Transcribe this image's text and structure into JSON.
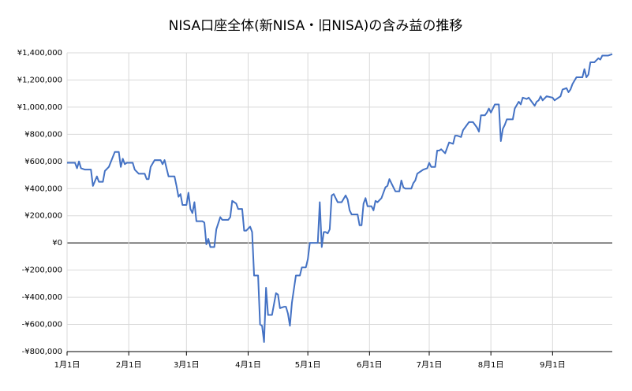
{
  "chart_data": {
    "type": "line",
    "title": "NISA口座全体(新NISA・旧NISA)の含み益の推移",
    "x": [
      0,
      4,
      5,
      6,
      7,
      9,
      12,
      13,
      15,
      16,
      18,
      19,
      21,
      24,
      26,
      27,
      28,
      29,
      30,
      33,
      34,
      36,
      39,
      40,
      41,
      42,
      44,
      47,
      48,
      49,
      51,
      54,
      55,
      56,
      57,
      58,
      60,
      61,
      62,
      63,
      64,
      65,
      68,
      69,
      70,
      71,
      72,
      74,
      75,
      77,
      78,
      81,
      82,
      83,
      85,
      86,
      88,
      89,
      90,
      92,
      93,
      94,
      96,
      97,
      98,
      99,
      100,
      101,
      103,
      105,
      106,
      107,
      109,
      110,
      111,
      112,
      113,
      115,
      117,
      118,
      120,
      121,
      122,
      126,
      127,
      128,
      129,
      130,
      131,
      132,
      133,
      134,
      136,
      138,
      140,
      141,
      142,
      143,
      146,
      147,
      148,
      149,
      150,
      151,
      153,
      154,
      155,
      156,
      158,
      160,
      161,
      162,
      163,
      165,
      167,
      168,
      169,
      170,
      173,
      174,
      175,
      176,
      178,
      179,
      181,
      182,
      183,
      185,
      186,
      187,
      188,
      190,
      191,
      192,
      194,
      195,
      196,
      198,
      199,
      200,
      202,
      204,
      206,
      207,
      208,
      210,
      211,
      212,
      213,
      215,
      217,
      218,
      219,
      220,
      221,
      224,
      225,
      227,
      228,
      229,
      231,
      232,
      234,
      235,
      236,
      237,
      238,
      239,
      241,
      244,
      245,
      246,
      248,
      249,
      251,
      252,
      253,
      254,
      256,
      259,
      260,
      261,
      262,
      263,
      265,
      267,
      268,
      269,
      272,
      274
    ],
    "series": [
      {
        "color": "#4472c4",
        "values": [
          590000,
          590000,
          550000,
          600000,
          550000,
          540000,
          540000,
          420000,
          490000,
          450000,
          450000,
          530000,
          560000,
          670000,
          670000,
          560000,
          620000,
          580000,
          590000,
          590000,
          540000,
          510000,
          510000,
          470000,
          470000,
          560000,
          610000,
          610000,
          580000,
          610000,
          490000,
          490000,
          420000,
          340000,
          360000,
          280000,
          280000,
          370000,
          250000,
          220000,
          300000,
          160000,
          160000,
          150000,
          -10000,
          30000,
          -30000,
          -30000,
          100000,
          190000,
          170000,
          170000,
          190000,
          310000,
          290000,
          250000,
          250000,
          90000,
          90000,
          120000,
          80000,
          -240000,
          -240000,
          -600000,
          -610000,
          -730000,
          -330000,
          -530000,
          -530000,
          -370000,
          -380000,
          -480000,
          -470000,
          -470000,
          -520000,
          -610000,
          -440000,
          -240000,
          -240000,
          -180000,
          -180000,
          -120000,
          0,
          0,
          300000,
          -30000,
          80000,
          80000,
          70000,
          100000,
          350000,
          360000,
          300000,
          300000,
          350000,
          320000,
          240000,
          210000,
          210000,
          130000,
          130000,
          290000,
          330000,
          270000,
          270000,
          240000,
          310000,
          300000,
          330000,
          410000,
          420000,
          470000,
          440000,
          380000,
          380000,
          460000,
          410000,
          400000,
          400000,
          440000,
          460000,
          510000,
          530000,
          540000,
          550000,
          590000,
          560000,
          560000,
          680000,
          680000,
          690000,
          660000,
          700000,
          740000,
          730000,
          790000,
          790000,
          780000,
          830000,
          850000,
          890000,
          890000,
          850000,
          820000,
          940000,
          940000,
          960000,
          990000,
          960000,
          1020000,
          1020000,
          750000,
          840000,
          870000,
          910000,
          910000,
          990000,
          1040000,
          1020000,
          1070000,
          1060000,
          1070000,
          1030000,
          1010000,
          1040000,
          1050000,
          1080000,
          1050000,
          1080000,
          1070000,
          1050000,
          1060000,
          1080000,
          1130000,
          1140000,
          1110000,
          1130000,
          1170000,
          1220000,
          1220000,
          1280000,
          1220000,
          1240000,
          1330000,
          1330000,
          1360000,
          1350000,
          1380000,
          1380000,
          1390000
        ]
      }
    ],
    "xlim": [
      0,
      274
    ],
    "xticks": [
      {
        "value": 0,
        "label": "1月1日"
      },
      {
        "value": 31,
        "label": "2月1日"
      },
      {
        "value": 60,
        "label": "3月1日"
      },
      {
        "value": 91,
        "label": "4月1日"
      },
      {
        "value": 121,
        "label": "5月1日"
      },
      {
        "value": 152,
        "label": "6月1日"
      },
      {
        "value": 182,
        "label": "7月1日"
      },
      {
        "value": 213,
        "label": "8月1日"
      },
      {
        "value": 244,
        "label": "9月1日"
      }
    ],
    "ylim": [
      -800000,
      1400000
    ],
    "yticks": [
      {
        "value": -800000,
        "label": "-¥800,000"
      },
      {
        "value": -600000,
        "label": "-¥600,000"
      },
      {
        "value": -400000,
        "label": "-¥400,000"
      },
      {
        "value": -200000,
        "label": "-¥200,000"
      },
      {
        "value": 0,
        "label": "¥0"
      },
      {
        "value": 200000,
        "label": "¥200,000"
      },
      {
        "value": 400000,
        "label": "¥400,000"
      },
      {
        "value": 600000,
        "label": "¥600,000"
      },
      {
        "value": 800000,
        "label": "¥800,000"
      },
      {
        "value": 1000000,
        "label": "¥1,000,000"
      },
      {
        "value": 1200000,
        "label": "¥1,200,000"
      },
      {
        "value": 1400000,
        "label": "¥1,400,000"
      }
    ],
    "grid": true
  }
}
